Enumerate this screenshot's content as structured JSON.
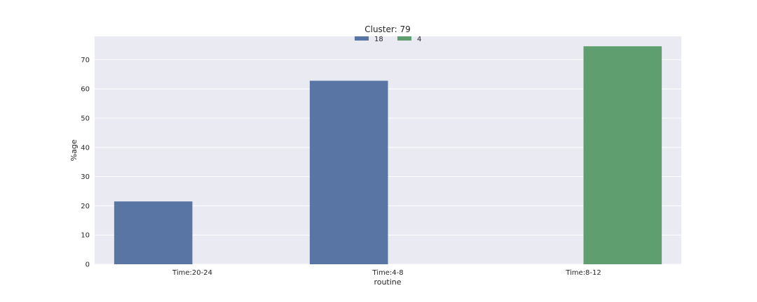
{
  "chart_data": {
    "type": "bar",
    "title": "Cluster: 79",
    "xlabel": "routine",
    "ylabel": "%age",
    "categories": [
      "Time:20-24",
      "Time:4-8",
      "Time:8-12"
    ],
    "series": [
      {
        "name": "18",
        "color": "#5975a4",
        "values": [
          21.5,
          62.8,
          null
        ]
      },
      {
        "name": "4",
        "color": "#5f9e6e",
        "values": [
          null,
          null,
          74.6
        ]
      }
    ],
    "ylim": [
      0,
      78
    ],
    "yticks": [
      0,
      10,
      20,
      30,
      40,
      50,
      60,
      70
    ],
    "grid": true,
    "legend_position": "top-center",
    "background_color": "#eaeaf2"
  }
}
